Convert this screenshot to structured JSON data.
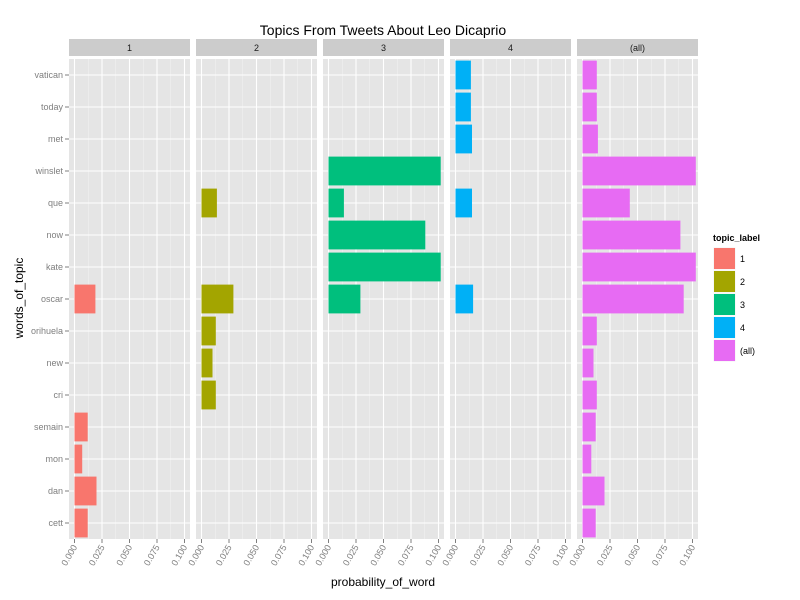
{
  "chart_data": {
    "type": "bar",
    "orientation": "horizontal",
    "title": "Topics From Tweets About Leo Dicaprio",
    "xlabel": "probability_of_word",
    "ylabel": "words_of_topic",
    "xlim": [
      0,
      0.1
    ],
    "x_ticks": [
      "0.000",
      "0.025",
      "0.050",
      "0.075",
      "0.100"
    ],
    "x_tick_values": [
      0,
      0.025,
      0.05,
      0.075,
      0.1
    ],
    "facets": [
      "1",
      "2",
      "3",
      "4",
      "(all)"
    ],
    "categories": [
      "vatican",
      "today",
      "met",
      "winslet",
      "que",
      "now",
      "kate",
      "oscar",
      "orihuela",
      "new",
      "cri",
      "semain",
      "mon",
      "dan",
      "cett"
    ],
    "grid": true,
    "legend": {
      "title": "topic_label",
      "placement": "right",
      "entries": [
        {
          "label": "1",
          "color": "#f8766d"
        },
        {
          "label": "2",
          "color": "#a3a500"
        },
        {
          "label": "3",
          "color": "#00bf7d"
        },
        {
          "label": "4",
          "color": "#00b0f6"
        },
        {
          "label": "(all)",
          "color": "#e76bf3"
        }
      ]
    },
    "series": [
      {
        "name": "1",
        "color": "#f8766d",
        "points": [
          {
            "word": "oscar",
            "value": 0.019
          },
          {
            "word": "semain",
            "value": 0.012
          },
          {
            "word": "mon",
            "value": 0.007
          },
          {
            "word": "dan",
            "value": 0.02
          },
          {
            "word": "cett",
            "value": 0.012
          }
        ]
      },
      {
        "name": "2",
        "color": "#a3a500",
        "points": [
          {
            "word": "que",
            "value": 0.014
          },
          {
            "word": "oscar",
            "value": 0.029
          },
          {
            "word": "orihuela",
            "value": 0.013
          },
          {
            "word": "new",
            "value": 0.01
          },
          {
            "word": "cri",
            "value": 0.013
          }
        ]
      },
      {
        "name": "3",
        "color": "#00bf7d",
        "points": [
          {
            "word": "winslet",
            "value": 0.102
          },
          {
            "word": "que",
            "value": 0.014
          },
          {
            "word": "now",
            "value": 0.088
          },
          {
            "word": "kate",
            "value": 0.102
          },
          {
            "word": "oscar",
            "value": 0.029
          }
        ]
      },
      {
        "name": "4",
        "color": "#00b0f6",
        "points": [
          {
            "word": "vatican",
            "value": 0.014
          },
          {
            "word": "today",
            "value": 0.014
          },
          {
            "word": "met",
            "value": 0.015
          },
          {
            "word": "que",
            "value": 0.015
          },
          {
            "word": "oscar",
            "value": 0.016
          }
        ]
      },
      {
        "name": "(all)",
        "color": "#e76bf3",
        "points": [
          {
            "word": "vatican",
            "value": 0.013
          },
          {
            "word": "today",
            "value": 0.013
          },
          {
            "word": "met",
            "value": 0.014
          },
          {
            "word": "winslet",
            "value": 0.103
          },
          {
            "word": "que",
            "value": 0.043
          },
          {
            "word": "now",
            "value": 0.089
          },
          {
            "word": "kate",
            "value": 0.103
          },
          {
            "word": "oscar",
            "value": 0.092
          },
          {
            "word": "orihuela",
            "value": 0.013
          },
          {
            "word": "new",
            "value": 0.01
          },
          {
            "word": "cri",
            "value": 0.013
          },
          {
            "word": "semain",
            "value": 0.012
          },
          {
            "word": "mon",
            "value": 0.008
          },
          {
            "word": "dan",
            "value": 0.02
          },
          {
            "word": "cett",
            "value": 0.012
          }
        ]
      }
    ]
  }
}
